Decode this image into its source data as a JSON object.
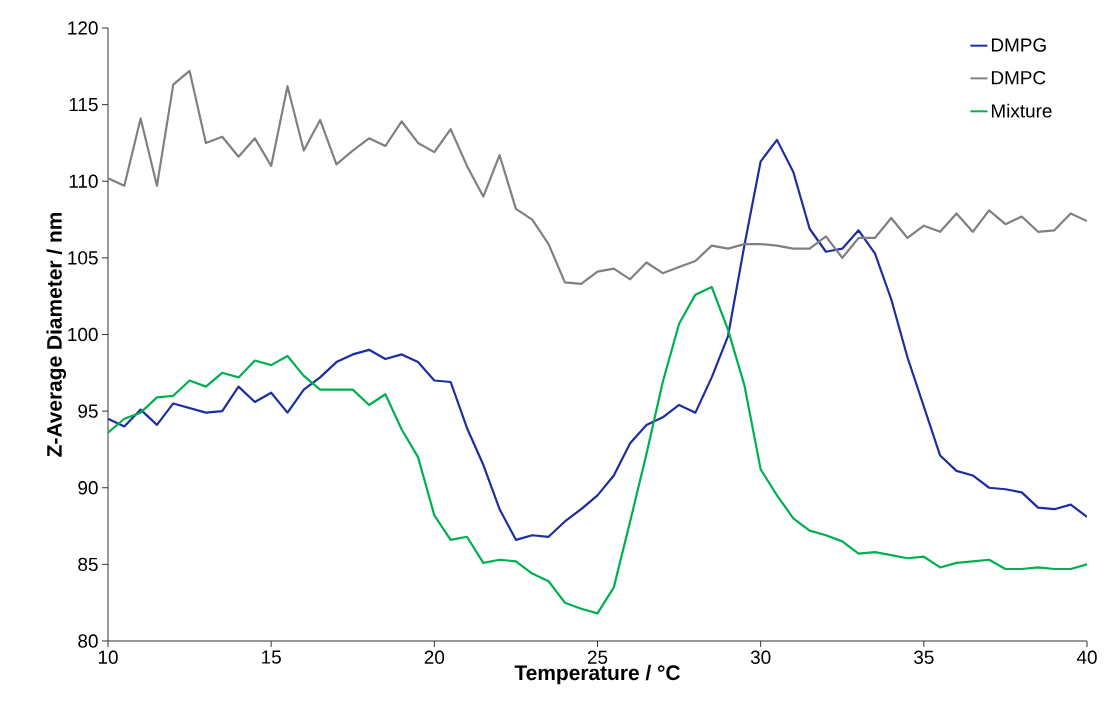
{
  "chart_data": {
    "type": "line",
    "xlabel": "Temperature / °C",
    "ylabel": "Z-Average Diameter / nm",
    "x": [
      10,
      10.5,
      11,
      11.5,
      12,
      12.5,
      13,
      13.5,
      14,
      14.5,
      15,
      15.5,
      16,
      16.5,
      17,
      17.5,
      18,
      18.5,
      19,
      19.5,
      20,
      20.5,
      21,
      21.5,
      22,
      22.5,
      23,
      23.5,
      24,
      24.5,
      25,
      25.5,
      26,
      26.5,
      27,
      27.5,
      28,
      28.5,
      29,
      29.5,
      30,
      30.5,
      31,
      31.5,
      32,
      32.5,
      33,
      33.5,
      34,
      34.5,
      35,
      35.5,
      36,
      36.5,
      37,
      37.5,
      38,
      38.5,
      39,
      39.5,
      40
    ],
    "series": [
      {
        "name": "DMPG",
        "color": "#1c2ea0",
        "values": [
          94.5,
          94.0,
          95.1,
          94.1,
          95.5,
          95.2,
          94.9,
          95.0,
          96.6,
          95.6,
          96.2,
          94.9,
          96.4,
          97.2,
          98.2,
          98.7,
          99.0,
          98.4,
          98.7,
          98.2,
          97.0,
          96.9,
          93.9,
          91.5,
          88.6,
          86.6,
          86.9,
          86.8,
          87.8,
          88.6,
          89.5,
          90.8,
          92.9,
          94.1,
          94.6,
          95.4,
          94.9,
          97.2,
          99.9,
          105.8,
          111.3,
          112.7,
          110.6,
          106.9,
          105.4,
          105.6,
          106.8,
          105.3,
          102.3,
          98.5,
          95.3,
          92.1,
          91.1,
          90.8,
          90.0,
          89.9,
          89.7,
          88.7,
          88.6,
          88.9,
          88.1
        ]
      },
      {
        "name": "DMPC",
        "color": "#808080",
        "values": [
          110.2,
          109.7,
          114.1,
          109.7,
          116.3,
          117.2,
          112.5,
          112.9,
          111.6,
          112.8,
          111.0,
          116.2,
          112.0,
          114.0,
          111.1,
          112.0,
          112.8,
          112.3,
          113.9,
          112.5,
          111.9,
          113.4,
          111.0,
          109.0,
          111.7,
          108.2,
          107.5,
          105.9,
          103.4,
          103.3,
          104.1,
          104.3,
          103.6,
          104.7,
          104.0,
          104.4,
          104.8,
          105.8,
          105.6,
          105.9,
          105.9,
          105.8,
          105.6,
          105.6,
          106.4,
          105.0,
          106.3,
          106.3,
          107.6,
          106.3,
          107.1,
          106.7,
          107.9,
          106.7,
          108.1,
          107.2,
          107.7,
          106.7,
          106.8,
          107.9,
          107.4
        ]
      },
      {
        "name": "Mixture",
        "color": "#00b050",
        "values": [
          93.6,
          94.5,
          94.9,
          95.9,
          96.0,
          97.0,
          96.6,
          97.5,
          97.2,
          98.3,
          98.0,
          98.6,
          97.3,
          96.4,
          96.4,
          96.4,
          95.4,
          96.1,
          93.8,
          92.0,
          88.2,
          86.6,
          86.8,
          85.1,
          85.3,
          85.2,
          84.4,
          83.9,
          82.5,
          82.1,
          81.8,
          83.5,
          87.8,
          92.2,
          96.9,
          100.7,
          102.6,
          103.1,
          100.3,
          96.7,
          91.2,
          89.5,
          88.0,
          87.2,
          86.9,
          86.5,
          85.7,
          85.8,
          85.6,
          85.4,
          85.5,
          84.8,
          85.1,
          85.2,
          85.3,
          84.7,
          84.7,
          84.8,
          84.7,
          84.7,
          85.0
        ]
      }
    ],
    "xlim": [
      10,
      40
    ],
    "xticks": [
      10,
      15,
      20,
      25,
      30,
      35,
      40
    ],
    "ylim": [
      80,
      120
    ],
    "yticks": [
      80,
      85,
      90,
      95,
      100,
      105,
      110,
      115,
      120
    ],
    "legend": "top right",
    "grid": false,
    "marker": "none",
    "line_style": "solid"
  }
}
